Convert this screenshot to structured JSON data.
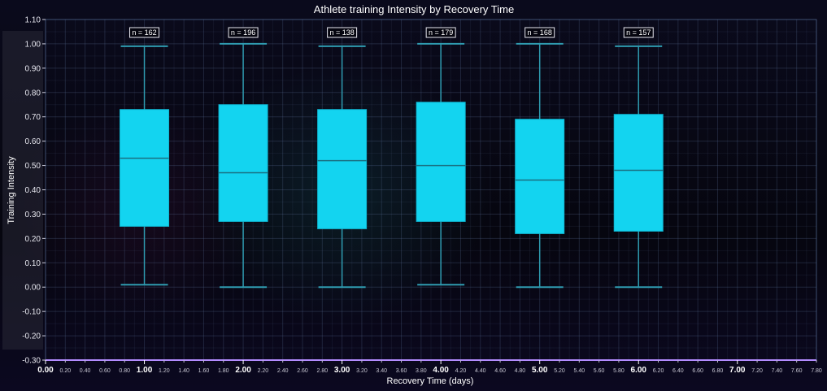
{
  "chart_data": {
    "type": "box",
    "title": "Athlete training Intensity by Recovery Time",
    "xlabel": "Recovery Time (days)",
    "ylabel": "Training Intensity",
    "xlim": [
      0,
      7.8
    ],
    "ylim": [
      -0.3,
      1.1
    ],
    "y_ticks": [
      "-0.30",
      "-0.20",
      "-0.10",
      "0.00",
      "0.10",
      "0.20",
      "0.30",
      "0.40",
      "0.50",
      "0.60",
      "0.70",
      "0.80",
      "0.90",
      "1.00",
      "1.10"
    ],
    "x_ticks_major": [
      "0.00",
      "1.00",
      "2.00",
      "3.00",
      "4.00",
      "5.00",
      "6.00",
      "7.00"
    ],
    "x_ticks_minor": [
      "0.20",
      "0.40",
      "0.60",
      "0.80",
      "1.20",
      "1.40",
      "1.60",
      "1.80",
      "2.20",
      "2.40",
      "2.60",
      "2.80",
      "3.20",
      "3.40",
      "3.60",
      "3.80",
      "4.20",
      "4.40",
      "4.60",
      "4.80",
      "5.20",
      "5.40",
      "5.60",
      "5.80",
      "6.20",
      "6.40",
      "6.60",
      "6.80",
      "7.20",
      "7.40",
      "7.60",
      "7.80"
    ],
    "grid": true,
    "box_color": "#13d4f0",
    "boxes": [
      {
        "x": 1,
        "min": 0.01,
        "q1": 0.25,
        "median": 0.53,
        "q3": 0.73,
        "max": 0.99,
        "n_label": "n = 162"
      },
      {
        "x": 2,
        "min": 0.0,
        "q1": 0.27,
        "median": 0.47,
        "q3": 0.75,
        "max": 1.0,
        "n_label": "n = 196"
      },
      {
        "x": 3,
        "min": 0.0,
        "q1": 0.24,
        "median": 0.52,
        "q3": 0.73,
        "max": 0.99,
        "n_label": "n = 138"
      },
      {
        "x": 4,
        "min": 0.01,
        "q1": 0.27,
        "median": 0.5,
        "q3": 0.76,
        "max": 1.0,
        "n_label": "n = 179"
      },
      {
        "x": 5,
        "min": 0.0,
        "q1": 0.22,
        "median": 0.44,
        "q3": 0.69,
        "max": 1.0,
        "n_label": "n = 168"
      },
      {
        "x": 6,
        "min": 0.0,
        "q1": 0.23,
        "median": 0.48,
        "q3": 0.71,
        "max": 0.99,
        "n_label": "n = 157"
      }
    ]
  }
}
